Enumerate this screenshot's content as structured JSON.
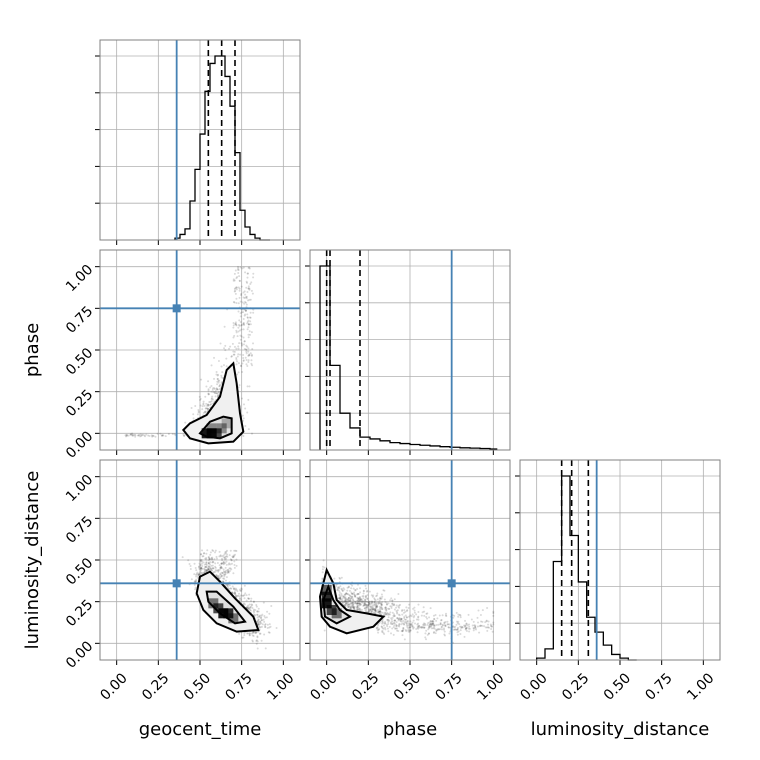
{
  "chart_data": {
    "type": "corner",
    "parameters": [
      "geocent_time",
      "phase",
      "luminosity_distance"
    ],
    "axis_range": [
      -0.1,
      1.1
    ],
    "ticks": [
      0.0,
      0.25,
      0.5,
      0.75,
      1.0
    ],
    "tick_labels": [
      "0.00",
      "0.25",
      "0.50",
      "0.75",
      "1.00"
    ],
    "grid": true,
    "truths": {
      "geocent_time": 0.36,
      "phase": 0.75,
      "luminosity_distance": 0.36
    },
    "truth_color": "#4682b4",
    "quantiles": {
      "geocent_time": [
        0.55,
        0.63,
        0.71
      ],
      "phase": [
        0.0,
        0.02,
        0.2
      ],
      "luminosity_distance": [
        0.15,
        0.21,
        0.31
      ]
    },
    "histograms": {
      "geocent_time": {
        "bin_edges": [
          0.35,
          0.38,
          0.41,
          0.44,
          0.47,
          0.5,
          0.53,
          0.56,
          0.59,
          0.62,
          0.65,
          0.68,
          0.71,
          0.74,
          0.77,
          0.8,
          0.83,
          0.86,
          0.89,
          0.92
        ],
        "counts": [
          1,
          3,
          6,
          21,
          38,
          57,
          80,
          95,
          99,
          99,
          88,
          72,
          47,
          16,
          7,
          3,
          1,
          0,
          0
        ]
      },
      "phase": {
        "bin_edges": [
          -0.04,
          0.02,
          0.08,
          0.14,
          0.2,
          0.26,
          0.32,
          0.38,
          0.44,
          0.5,
          0.56,
          0.62,
          0.68,
          0.74,
          0.8,
          0.86,
          0.92,
          0.98,
          1.02
        ],
        "counts": [
          100,
          46,
          20,
          12,
          7,
          6,
          5,
          4,
          3.5,
          3,
          2.6,
          2.2,
          1.8,
          1.5,
          1.2,
          1,
          0.8,
          0.5
        ]
      },
      "luminosity_distance": {
        "bin_edges": [
          0.0,
          0.05,
          0.1,
          0.15,
          0.2,
          0.25,
          0.3,
          0.35,
          0.4,
          0.45,
          0.5,
          0.55,
          0.6
        ],
        "counts": [
          1,
          6,
          53,
          99,
          67,
          42,
          23,
          15,
          8,
          3,
          1,
          0
        ]
      }
    },
    "contours": {
      "phase_vs_geocent_time": {
        "outer": [
          [
            0.4,
            0.02
          ],
          [
            0.44,
            -0.03
          ],
          [
            0.55,
            -0.06
          ],
          [
            0.7,
            -0.05
          ],
          [
            0.76,
            0.01
          ],
          [
            0.74,
            0.12
          ],
          [
            0.72,
            0.3
          ],
          [
            0.7,
            0.42
          ],
          [
            0.66,
            0.38
          ],
          [
            0.62,
            0.22
          ],
          [
            0.54,
            0.11
          ],
          [
            0.44,
            0.06
          ]
        ],
        "inner": [
          [
            0.5,
            0.0
          ],
          [
            0.54,
            -0.02
          ],
          [
            0.62,
            -0.03
          ],
          [
            0.69,
            0.0
          ],
          [
            0.69,
            0.09
          ],
          [
            0.64,
            0.1
          ],
          [
            0.56,
            0.07
          ]
        ],
        "density_cells": [
          [
            0.54,
            0.0,
            0.9
          ],
          [
            0.57,
            0.0,
            0.9
          ],
          [
            0.6,
            0.0,
            0.7
          ],
          [
            0.57,
            0.03,
            0.4
          ],
          [
            0.63,
            0.03,
            0.4
          ],
          [
            0.66,
            0.06,
            0.25
          ]
        ]
      },
      "luminosity_distance_vs_geocent_time": {
        "outer": [
          [
            0.5,
            0.4
          ],
          [
            0.56,
            0.43
          ],
          [
            0.62,
            0.37
          ],
          [
            0.71,
            0.27
          ],
          [
            0.82,
            0.16
          ],
          [
            0.85,
            0.08
          ],
          [
            0.72,
            0.07
          ],
          [
            0.6,
            0.12
          ],
          [
            0.52,
            0.2
          ],
          [
            0.48,
            0.3
          ]
        ],
        "inner": [
          [
            0.54,
            0.31
          ],
          [
            0.6,
            0.31
          ],
          [
            0.7,
            0.22
          ],
          [
            0.77,
            0.13
          ],
          [
            0.71,
            0.12
          ],
          [
            0.62,
            0.18
          ],
          [
            0.55,
            0.25
          ]
        ],
        "density_cells": [
          [
            0.58,
            0.24,
            0.5
          ],
          [
            0.61,
            0.21,
            0.7
          ],
          [
            0.64,
            0.18,
            0.9
          ],
          [
            0.67,
            0.18,
            0.8
          ],
          [
            0.7,
            0.15,
            0.5
          ]
        ]
      },
      "luminosity_distance_vs_phase": {
        "outer": [
          [
            -0.04,
            0.28
          ],
          [
            0.0,
            0.44
          ],
          [
            0.04,
            0.36
          ],
          [
            0.06,
            0.26
          ],
          [
            0.12,
            0.2
          ],
          [
            0.24,
            0.18
          ],
          [
            0.34,
            0.16
          ],
          [
            0.28,
            0.1
          ],
          [
            0.12,
            0.06
          ],
          [
            0.02,
            0.1
          ],
          [
            -0.03,
            0.16
          ]
        ],
        "inner": [
          [
            -0.02,
            0.26
          ],
          [
            0.01,
            0.34
          ],
          [
            0.04,
            0.26
          ],
          [
            0.08,
            0.2
          ],
          [
            0.14,
            0.16
          ],
          [
            0.06,
            0.12
          ],
          [
            -0.01,
            0.16
          ]
        ],
        "density_cells": [
          [
            0.0,
            0.32,
            0.6
          ],
          [
            0.0,
            0.28,
            0.8
          ],
          [
            0.0,
            0.24,
            0.9
          ],
          [
            0.03,
            0.2,
            0.7
          ],
          [
            0.06,
            0.18,
            0.5
          ]
        ]
      }
    }
  }
}
